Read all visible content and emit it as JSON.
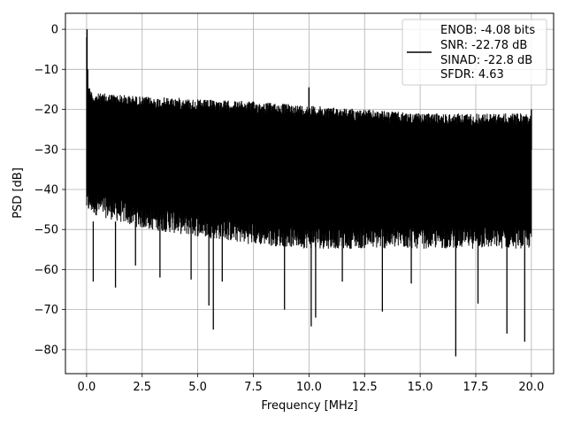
{
  "chart_data": {
    "type": "line",
    "title": "",
    "xlabel": "Frequency [MHz]",
    "ylabel": "PSD [dB]",
    "xlim": [
      -0.95,
      21.0
    ],
    "ylim": [
      -86,
      4
    ],
    "xticks": [
      0.0,
      2.5,
      5.0,
      7.5,
      10.0,
      12.5,
      15.0,
      17.5,
      20.0
    ],
    "xtick_labels": [
      "0.0",
      "2.5",
      "5.0",
      "7.5",
      "10.0",
      "12.5",
      "15.0",
      "17.5",
      "20.0"
    ],
    "yticks": [
      0,
      -10,
      -20,
      -30,
      -40,
      -50,
      -60,
      -70,
      -80
    ],
    "ytick_labels": [
      "0",
      "−10",
      "−20",
      "−30",
      "−40",
      "−50",
      "−60",
      "−70",
      "−80"
    ],
    "grid": true,
    "line_color": "#000000",
    "legend": {
      "placement": "top-right",
      "entries": [
        "ENOB: -4.08 bits",
        "SNR: -22.78 dB",
        "SINAD: -22.8 dB",
        "SFDR: 4.63"
      ]
    },
    "series": [
      {
        "name": "ENOB: -4.08 bits\nSNR: -22.78 dB\nSINAD: -22.8 dB\nSFDR: 4.63",
        "x_range": [
          0.0,
          20.0
        ],
        "upper_envelope": {
          "x": [
            0.0,
            0.02,
            0.1,
            0.3,
            1.0,
            2.0,
            3.0,
            4.0,
            5.0,
            7.5,
            10.0,
            12.5,
            15.0,
            17.5,
            20.0
          ],
          "y": [
            0.0,
            -10,
            -14,
            -16,
            -16,
            -16.5,
            -17,
            -17,
            -17.5,
            -18,
            -19,
            -20,
            -21,
            -21,
            -21
          ]
        },
        "lower_envelope": {
          "x": [
            0.0,
            2.5,
            5.0,
            7.5,
            10.0,
            12.5,
            15.0,
            17.5,
            20.0
          ],
          "y": [
            -44,
            -48,
            -50,
            -52,
            -53,
            -53,
            -53,
            -53,
            -53
          ]
        },
        "peaks": [
          {
            "x": 0.02,
            "y": 0.0
          },
          {
            "x": 0.05,
            "y": -10.0
          },
          {
            "x": 10.0,
            "y": -14.5
          },
          {
            "x": 20.0,
            "y": -20.0
          }
        ],
        "dips": [
          {
            "x": 0.3,
            "y": -63.0
          },
          {
            "x": 1.3,
            "y": -64.5
          },
          {
            "x": 2.2,
            "y": -59.0
          },
          {
            "x": 3.3,
            "y": -62.0
          },
          {
            "x": 4.7,
            "y": -62.5
          },
          {
            "x": 5.5,
            "y": -69.0
          },
          {
            "x": 5.7,
            "y": -75.0
          },
          {
            "x": 6.1,
            "y": -63.0
          },
          {
            "x": 8.9,
            "y": -70.0
          },
          {
            "x": 10.1,
            "y": -74.2
          },
          {
            "x": 10.3,
            "y": -72.0
          },
          {
            "x": 11.5,
            "y": -63.0
          },
          {
            "x": 13.3,
            "y": -70.5
          },
          {
            "x": 14.6,
            "y": -63.5
          },
          {
            "x": 16.6,
            "y": -81.7
          },
          {
            "x": 17.6,
            "y": -68.5
          },
          {
            "x": 18.9,
            "y": -76.0
          },
          {
            "x": 19.7,
            "y": -78.0
          }
        ]
      }
    ]
  }
}
